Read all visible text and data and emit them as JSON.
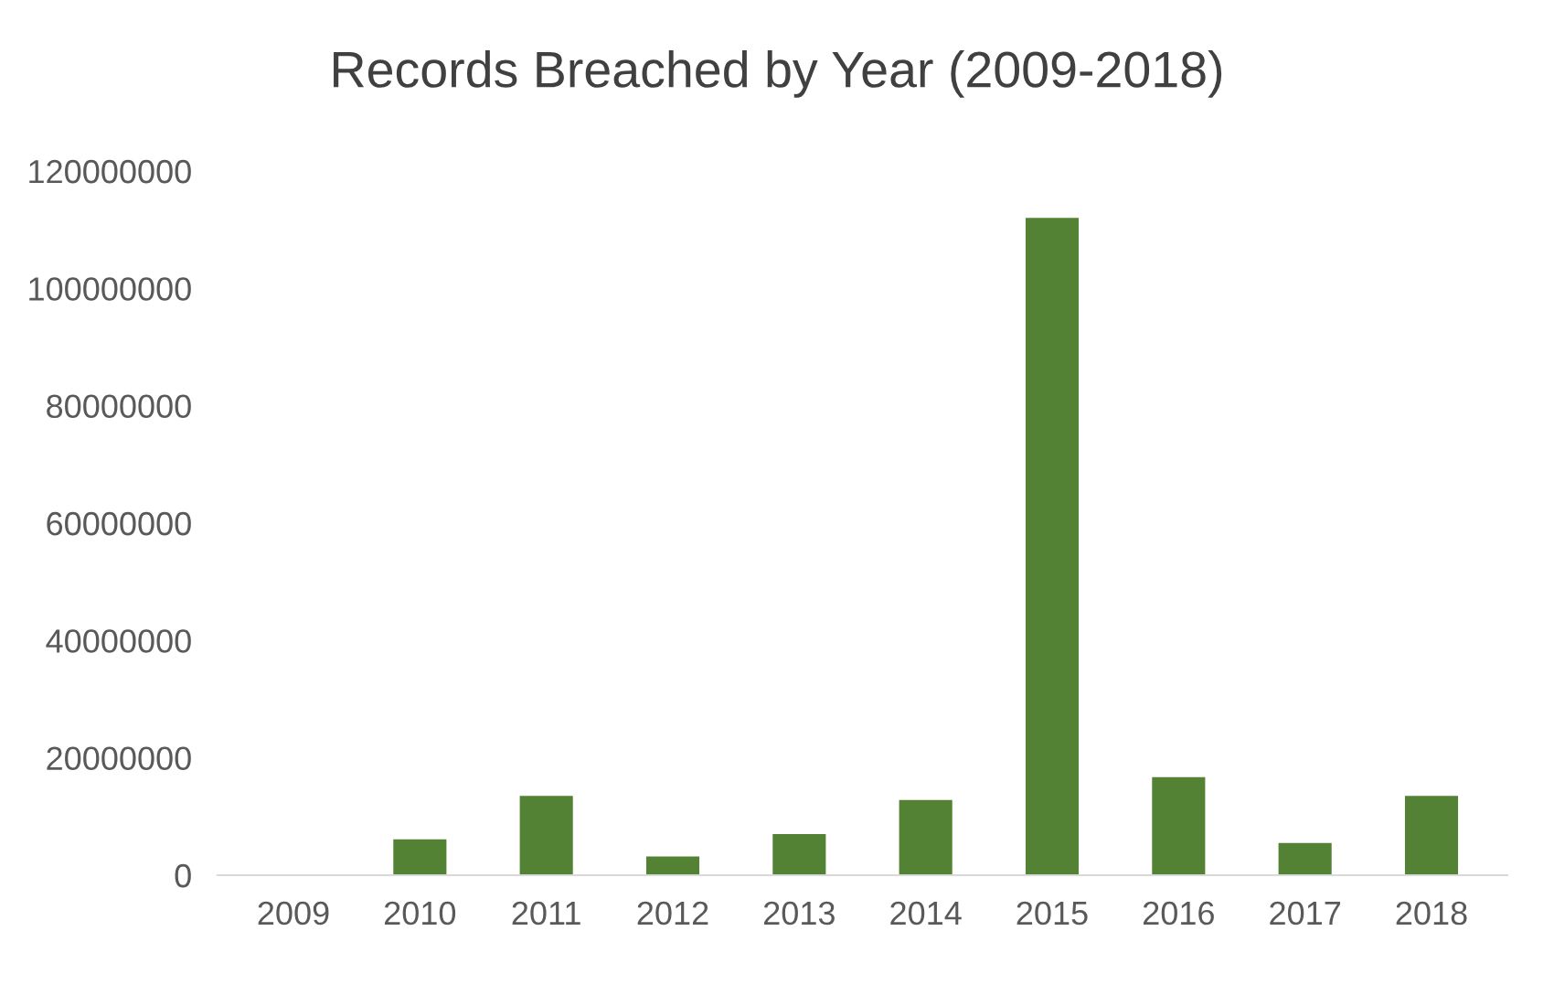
{
  "chart_data": {
    "type": "bar",
    "title": "Records Breached by Year (2009-2018)",
    "categories": [
      "2009",
      "2010",
      "2011",
      "2012",
      "2013",
      "2014",
      "2015",
      "2016",
      "2017",
      "2018"
    ],
    "values": [
      0,
      6100000,
      13500000,
      3200000,
      7000000,
      12800000,
      112000000,
      16700000,
      5500000,
      13500000
    ],
    "color": "#548235",
    "ylim": [
      0,
      120000000
    ],
    "yticks": [
      0,
      20000000,
      40000000,
      60000000,
      80000000,
      100000000,
      120000000
    ],
    "grid": false
  }
}
